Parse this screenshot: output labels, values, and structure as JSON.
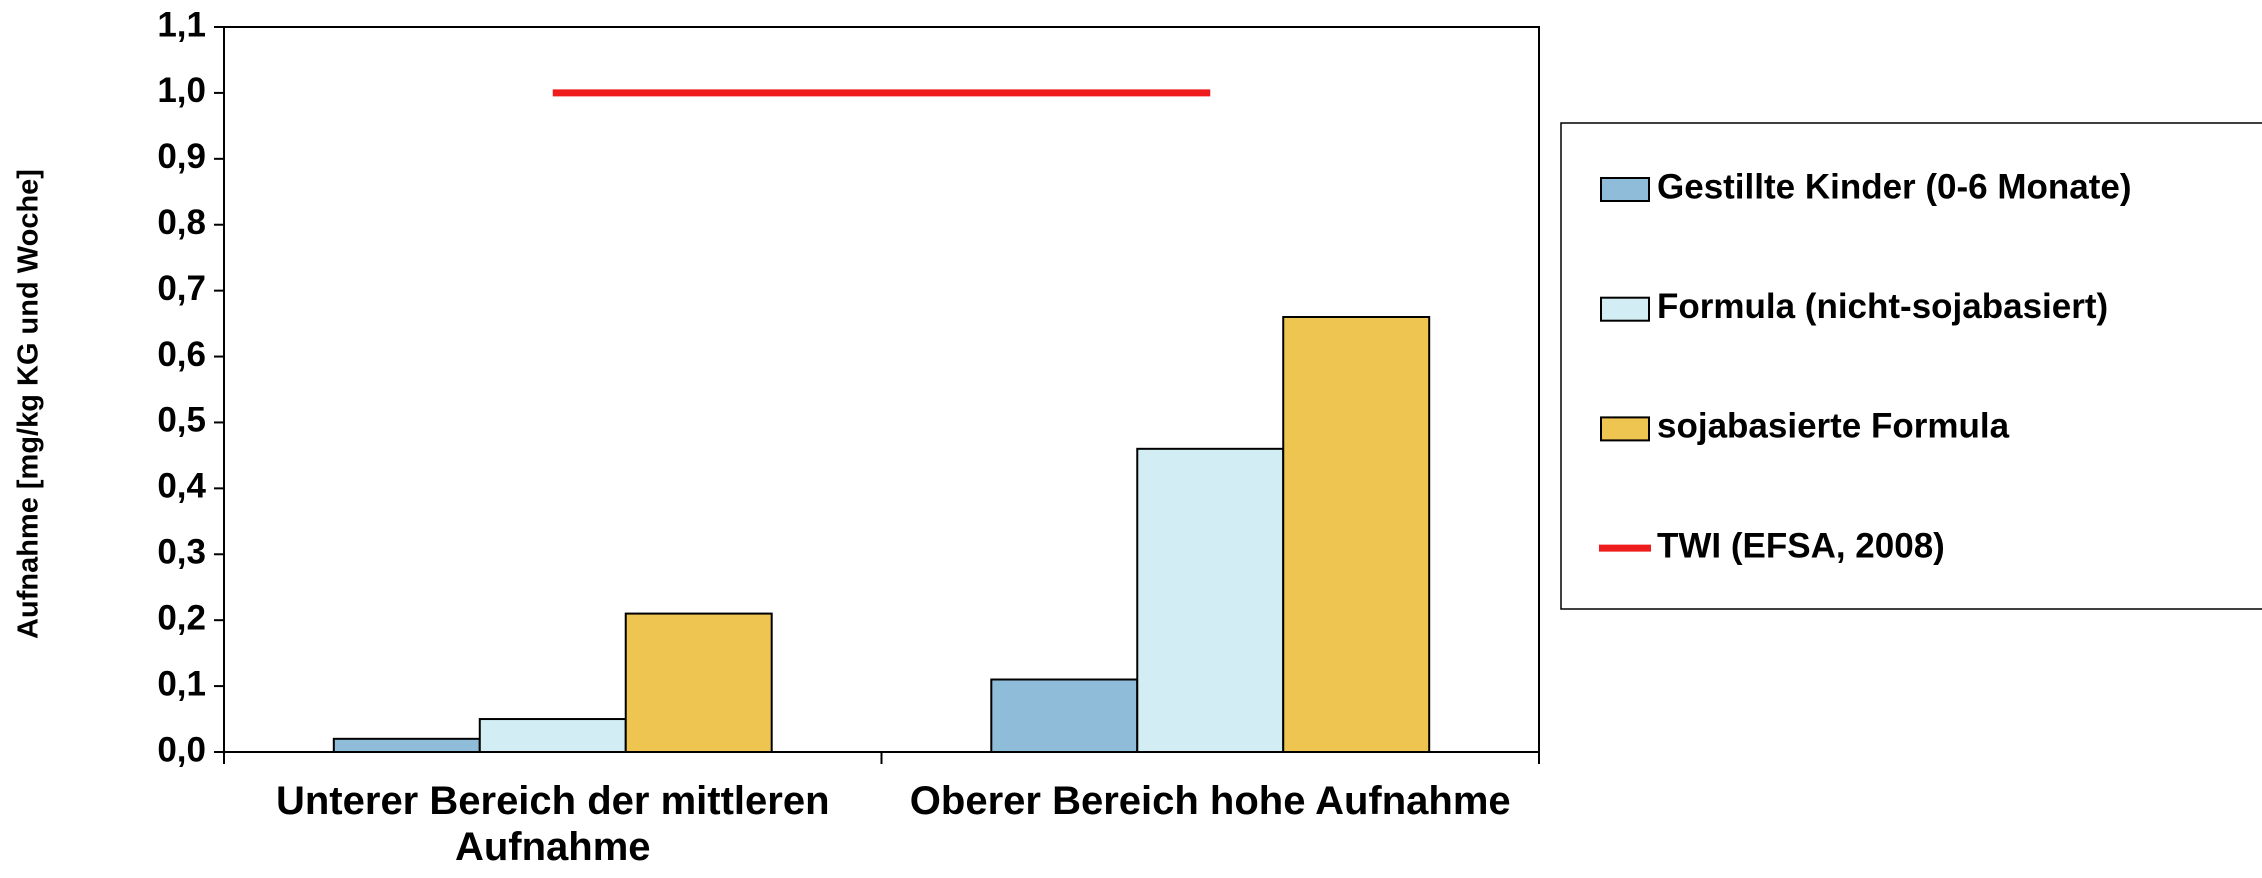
{
  "chart_data": {
    "type": "bar",
    "y_label": "Aufnahme [mg/kg KG und Woche]",
    "categories": [
      "Unterer Bereich der mittleren Aufnahme",
      "Oberer Bereich hohe Aufnahme"
    ],
    "series": [
      {
        "name": "Gestillte Kinder (0-6 Monate)",
        "color": "#8fbcd9",
        "type": "bar",
        "values": [
          0.02,
          0.11
        ]
      },
      {
        "name": "Formula (nicht-sojabasiert)",
        "color": "#d2edf3",
        "type": "bar",
        "values": [
          0.05,
          0.46
        ]
      },
      {
        "name": "sojabasierte Formula",
        "color": "#efc552",
        "type": "bar",
        "values": [
          0.21,
          0.66
        ]
      },
      {
        "name": "TWI (EFSA, 2008)",
        "color": "#ee1c1c",
        "type": "line",
        "values": [
          1.0,
          1.0
        ]
      }
    ],
    "ylim": [
      0,
      1.1
    ],
    "yticks": [
      {
        "value": 0,
        "label": "0,0"
      },
      {
        "value": 0.1,
        "label": "0,1"
      },
      {
        "value": 0.2,
        "label": "0,2"
      },
      {
        "value": 0.3,
        "label": "0,3"
      },
      {
        "value": 0.4,
        "label": "0,4"
      },
      {
        "value": 0.5,
        "label": "0,5"
      },
      {
        "value": 0.6,
        "label": "0,6"
      },
      {
        "value": 0.7,
        "label": "0,7"
      },
      {
        "value": 0.8,
        "label": "0,8"
      },
      {
        "value": 0.9,
        "label": "0,9"
      },
      {
        "value": 1.0,
        "label": "1,0"
      },
      {
        "value": 1.1,
        "label": "1,1"
      }
    ],
    "legend": "right"
  }
}
